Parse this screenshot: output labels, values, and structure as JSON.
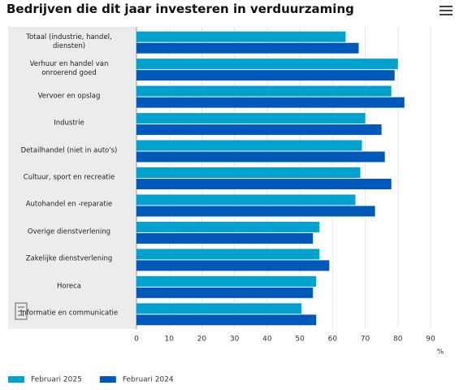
{
  "chart_data": {
    "type": "hbar",
    "title": "Bedrijven die dit jaar investeren in verduurzaming",
    "categories": [
      "Totaal (industrie, handel, diensten)",
      "Verhuur en handel van onroerend goed",
      "Vervoer en opslag",
      "Industrie",
      "Detailhandel (niet in auto's)",
      "Cultuur, sport en recreatie",
      "Autohandel en -reparatie",
      "Overige dienstverlening",
      "Zakelijke dienstverlening",
      "Horeca",
      "Informatie en communicatie"
    ],
    "series": [
      {
        "name": "Februari 2025",
        "color": "#00a1cd",
        "values": [
          64,
          80,
          78,
          70,
          69,
          68.5,
          67,
          56,
          56,
          55,
          50.5
        ]
      },
      {
        "name": "Februari 2024",
        "color": "#0058b8",
        "values": [
          68,
          79,
          82,
          75,
          76,
          78,
          73,
          54,
          59,
          54,
          55
        ]
      }
    ],
    "xlim": [
      0,
      90
    ],
    "xticks": [
      0,
      10,
      20,
      30,
      40,
      50,
      60,
      70,
      80,
      90
    ],
    "xlabel": "%",
    "grid": true
  }
}
